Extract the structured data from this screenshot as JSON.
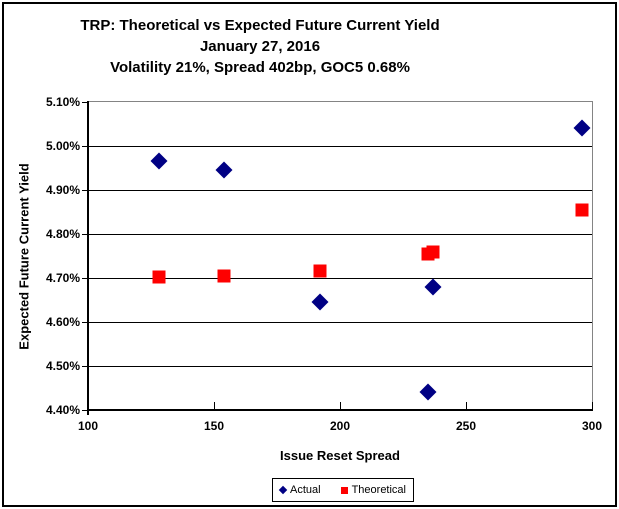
{
  "chart_data": {
    "type": "scatter",
    "title": "TRP: Theoretical vs Expected Future Current Yield",
    "subtitle": "January 27, 2016",
    "subtitle2": "Volatility 21%, Spread 402bp, GOC5 0.68%",
    "xlabel": "Issue Reset Spread",
    "ylabel": "Expected Future Current Yield",
    "xlim": [
      100,
      300
    ],
    "ylim": [
      4.4,
      5.1
    ],
    "xticks": [
      100,
      150,
      200,
      250,
      300
    ],
    "xtick_labels": [
      "100",
      "150",
      "200",
      "250",
      "300"
    ],
    "yticks": [
      5.1,
      5.0,
      4.9,
      4.8,
      4.7,
      4.6,
      4.5,
      4.4
    ],
    "ytick_labels": [
      "5.10%",
      "5.00%",
      "4.90%",
      "4.80%",
      "4.70%",
      "4.60%",
      "4.50%",
      "4.40%"
    ],
    "grid": true,
    "legend_position": "bottom-center",
    "series": [
      {
        "name": "Actual",
        "marker": "diamond",
        "color": "#000084",
        "points": [
          [
            128,
            4.965
          ],
          [
            154,
            4.945
          ],
          [
            192,
            4.645
          ],
          [
            235,
            4.44
          ],
          [
            237,
            4.68
          ],
          [
            296,
            5.04
          ]
        ]
      },
      {
        "name": "Theoretical",
        "marker": "square",
        "color": "#fe0000",
        "points": [
          [
            128,
            4.703
          ],
          [
            154,
            4.705
          ],
          [
            192,
            4.717
          ],
          [
            235,
            4.755
          ],
          [
            237,
            4.76
          ],
          [
            296,
            4.855
          ]
        ]
      }
    ]
  },
  "colors": {
    "actual": "#000084",
    "theoretical": "#fe0000",
    "gridline": "#000000",
    "plot_border": "#848484"
  }
}
